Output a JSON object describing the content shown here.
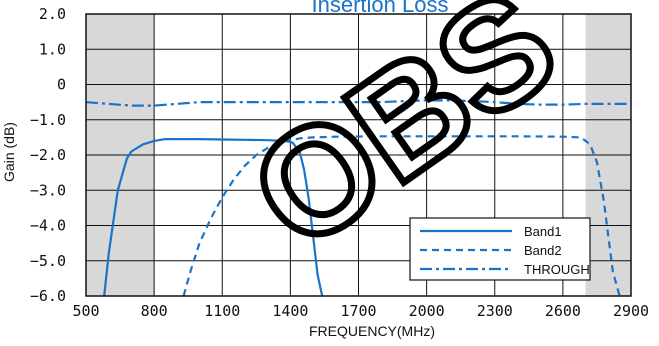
{
  "chart_data": {
    "type": "line",
    "title": "Insertion Loss",
    "xlabel": "FREQUENCY(MHz)",
    "ylabel": "Gain (dB)",
    "xlim": [
      500,
      2900
    ],
    "ylim": [
      -6.0,
      2.0
    ],
    "xticks": [
      500,
      800,
      1100,
      1400,
      1700,
      2000,
      2300,
      2600,
      2900
    ],
    "yticks": [
      2.0,
      1.0,
      0,
      -1.0,
      -2.0,
      -3.0,
      -4.0,
      -5.0,
      -6.0
    ],
    "ytick_labels": [
      "2.0",
      "1.0",
      "0",
      "−1.0",
      "−2.0",
      "−3.0",
      "−4.0",
      "−5.0",
      "−6.0"
    ],
    "grid": true,
    "shaded_x_ranges": [
      [
        500,
        800
      ],
      [
        2700,
        2900
      ]
    ],
    "legend": {
      "placement": "bottom-right"
    },
    "series": [
      {
        "name": "Band1",
        "color": "#1a73c8",
        "dash": "solid",
        "x": [
          580,
          600,
          640,
          680,
          700,
          750,
          800,
          850,
          900,
          1000,
          1100,
          1200,
          1300,
          1380,
          1410,
          1440,
          1460,
          1480,
          1500,
          1520,
          1540
        ],
        "y": [
          -6.0,
          -4.8,
          -3.0,
          -2.1,
          -1.9,
          -1.7,
          -1.6,
          -1.55,
          -1.55,
          -1.55,
          -1.56,
          -1.57,
          -1.58,
          -1.6,
          -1.65,
          -1.9,
          -2.4,
          -3.2,
          -4.3,
          -5.4,
          -6.0
        ]
      },
      {
        "name": "Band2",
        "color": "#1a73c8",
        "dash": "dashed",
        "x": [
          930,
          960,
          1000,
          1050,
          1100,
          1150,
          1200,
          1250,
          1300,
          1350,
          1400,
          1450,
          1500,
          1600,
          1800,
          2000,
          2200,
          2400,
          2600,
          2680,
          2720,
          2750,
          2780,
          2800,
          2820,
          2850
        ],
        "y": [
          -6.0,
          -5.3,
          -4.5,
          -3.8,
          -3.2,
          -2.7,
          -2.3,
          -2.0,
          -1.8,
          -1.65,
          -1.58,
          -1.52,
          -1.5,
          -1.48,
          -1.47,
          -1.47,
          -1.47,
          -1.47,
          -1.48,
          -1.5,
          -1.7,
          -2.2,
          -3.3,
          -4.3,
          -5.3,
          -6.0
        ]
      },
      {
        "name": "THROUGH",
        "color": "#1a73c8",
        "dash": "dashdot",
        "x": [
          500,
          600,
          700,
          800,
          900,
          1000,
          1100,
          1200,
          1300,
          1400,
          1500,
          1600,
          1700,
          1800,
          1900,
          2000,
          2100,
          2200,
          2300,
          2400,
          2500,
          2600,
          2700,
          2800,
          2900
        ],
        "y": [
          -0.5,
          -0.55,
          -0.6,
          -0.6,
          -0.55,
          -0.5,
          -0.5,
          -0.5,
          -0.5,
          -0.5,
          -0.5,
          -0.5,
          -0.5,
          -0.5,
          -0.47,
          -0.45,
          -0.45,
          -0.47,
          -0.5,
          -0.55,
          -0.57,
          -0.57,
          -0.55,
          -0.55,
          -0.55
        ]
      }
    ],
    "watermark_text": "OBS"
  }
}
